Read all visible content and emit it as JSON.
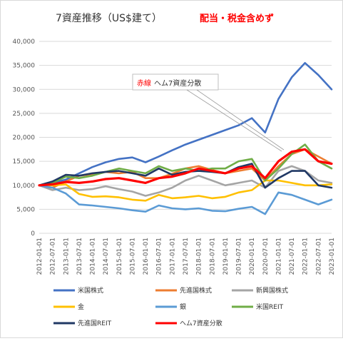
{
  "chart_data": {
    "type": "line",
    "title": "7資産推移（US$建て）",
    "subtitle": "配当・税金含めず",
    "callout": {
      "prefix": "赤線",
      "text": "ヘム7資産分散"
    },
    "ylim": [
      0,
      40000
    ],
    "y_ticks": [
      "0",
      "5,000",
      "10,000",
      "15,000",
      "20,000",
      "25,000",
      "30,000",
      "35,000",
      "40,000"
    ],
    "x_ticks": [
      "2012-01-01",
      "2012-07-01",
      "2013-01-01",
      "2013-07-01",
      "2014-01-01",
      "2014-07-01",
      "2015-01-01",
      "2015-07-01",
      "2016-01-01",
      "2016-07-01",
      "2017-01-01",
      "2017-07-01",
      "2018-01-01",
      "2018-07-01",
      "2019-01-01",
      "2019-07-01",
      "2020-01-01",
      "2020-07-01",
      "2021-01-01",
      "2021-07-01",
      "2022-01-01",
      "2022-07-01",
      "2023-01-01"
    ],
    "x": [
      "2012-01",
      "2012-07",
      "2013-01",
      "2013-07",
      "2014-01",
      "2014-07",
      "2015-01",
      "2015-07",
      "2016-01",
      "2016-07",
      "2017-01",
      "2017-07",
      "2018-01",
      "2018-07",
      "2019-01",
      "2019-07",
      "2020-01",
      "2020-07",
      "2021-01",
      "2021-07",
      "2022-01",
      "2022-07",
      "2023-01"
    ],
    "grid": true,
    "legend_position": "bottom",
    "series": [
      {
        "name": "米国株式",
        "color": "#4472C4",
        "values": [
          10000,
          10500,
          11200,
          12500,
          13800,
          14800,
          15500,
          15800,
          14800,
          16000,
          17300,
          18500,
          19500,
          20500,
          21500,
          22500,
          24000,
          21000,
          28000,
          32500,
          35500,
          33000,
          30000
        ]
      },
      {
        "name": "先進国株式",
        "color": "#ED7D31",
        "values": [
          10000,
          9500,
          10800,
          12000,
          12300,
          12800,
          12500,
          12800,
          11500,
          11500,
          12400,
          13500,
          14000,
          13200,
          12500,
          13000,
          13500,
          11000,
          14000,
          16500,
          17500,
          16000,
          14500
        ]
      },
      {
        "name": "新興国株式",
        "color": "#A5A5A5",
        "values": [
          10000,
          9000,
          9500,
          9000,
          9200,
          9800,
          9200,
          8700,
          7800,
          8500,
          9500,
          11000,
          12000,
          11000,
          10000,
          10500,
          11000,
          9500,
          13000,
          14000,
          13000,
          11000,
          10500
        ]
      },
      {
        "name": "金",
        "color": "#FFC000",
        "values": [
          10000,
          10000,
          10200,
          8200,
          7600,
          7700,
          7500,
          7000,
          6800,
          8000,
          7300,
          7500,
          7800,
          7300,
          7600,
          8500,
          9000,
          11000,
          11000,
          10500,
          10000,
          10000,
          10200
        ]
      },
      {
        "name": "銀",
        "color": "#5B9BD5",
        "values": [
          10000,
          9500,
          8300,
          6000,
          5800,
          5500,
          5200,
          4800,
          4500,
          5800,
          5200,
          5000,
          5200,
          4700,
          4600,
          5100,
          5500,
          4000,
          8500,
          8000,
          7000,
          6000,
          7000
        ]
      },
      {
        "name": "米国REIT",
        "color": "#70AD47",
        "values": [
          10000,
          10500,
          11800,
          11500,
          12000,
          12800,
          13500,
          13000,
          12500,
          14000,
          13000,
          13500,
          13000,
          13500,
          13500,
          15000,
          15500,
          11000,
          13500,
          16500,
          18500,
          15000,
          13500
        ]
      },
      {
        "name": "先進国REIT",
        "color": "#203864",
        "values": [
          10000,
          10800,
          12200,
          12000,
          12500,
          12800,
          13000,
          12500,
          12000,
          13500,
          12200,
          12800,
          13000,
          12800,
          12500,
          13800,
          14500,
          9500,
          11500,
          13000,
          13000,
          10000,
          9500
        ]
      },
      {
        "name": "ヘム7資産分散",
        "color": "#FF0000",
        "values": [
          10000,
          10200,
          10700,
          10500,
          10800,
          11300,
          11500,
          11000,
          10500,
          11500,
          11800,
          12500,
          13500,
          13000,
          12500,
          13500,
          14000,
          11500,
          15000,
          17000,
          17500,
          15000,
          14500
        ]
      }
    ]
  }
}
